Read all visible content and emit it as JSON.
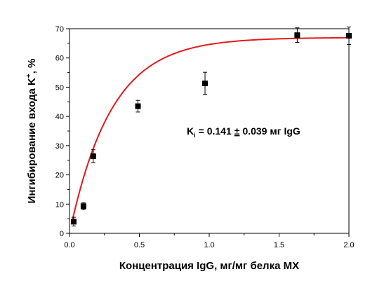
{
  "chart_data": {
    "type": "scatter",
    "xlabel": "Концентрация IgG, мг/мг белка МХ",
    "ylabel": {
      "main": "Ингибирование входа K",
      "sup": "+",
      "tail": ", %"
    },
    "xlim": [
      0.0,
      2.0
    ],
    "ylim": [
      0,
      70
    ],
    "x_ticks": [
      "0.0",
      "0.5",
      "1.0",
      "1.5",
      "2.0"
    ],
    "x_tick_values": [
      0.0,
      0.5,
      1.0,
      1.5,
      2.0
    ],
    "y_ticks": [
      "0",
      "10",
      "20",
      "30",
      "40",
      "50",
      "60",
      "70"
    ],
    "y_tick_values": [
      0,
      10,
      20,
      30,
      40,
      50,
      60,
      70
    ],
    "grid": false,
    "points": [
      {
        "x": 0.03,
        "y": 4.0,
        "err": 1.5
      },
      {
        "x": 0.1,
        "y": 9.3,
        "err": 1.2
      },
      {
        "x": 0.17,
        "y": 26.4,
        "err": 2.2
      },
      {
        "x": 0.49,
        "y": 43.5,
        "err": 2.0
      },
      {
        "x": 0.97,
        "y": 51.3,
        "err": 3.8
      },
      {
        "x": 1.63,
        "y": 67.8,
        "err": 2.5
      },
      {
        "x": 2.0,
        "y": 67.6,
        "err": 3.0
      }
    ],
    "fit": {
      "color": "#e31a1c",
      "asymptote": 67.0,
      "rate_constant": 0.3
    },
    "annotation": {
      "prefix": "K",
      "sub": "i",
      "value": "= 0.141",
      "pm": "±",
      "rest": "0.039 мг IgG"
    },
    "colors": {
      "marker": "#000000",
      "fit_line": "#e31a1c",
      "axis": "#000000"
    }
  }
}
